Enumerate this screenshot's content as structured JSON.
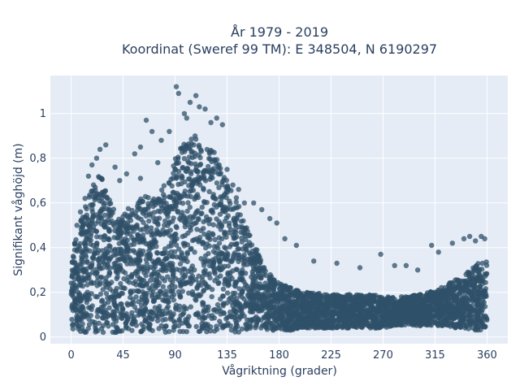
{
  "chart_data": {
    "type": "scatter",
    "title_lines": [
      "År 1979 - 2019",
      "Koordinat (Sweref 99 TM): E 348504, N 6190297"
    ],
    "xlabel": "Vågriktning (grader)",
    "ylabel": "Signifikant våghöjd (m)",
    "xlim": [
      -18,
      378
    ],
    "ylim": [
      -0.03,
      1.17
    ],
    "x_ticks": [
      0,
      45,
      90,
      135,
      180,
      225,
      270,
      315,
      360
    ],
    "y_ticks": [
      0,
      0.2,
      0.4,
      0.6,
      0.8,
      1
    ],
    "y_tick_labels": [
      "0",
      "0,2",
      "0,4",
      "0,6",
      "0,8",
      "1"
    ],
    "grid": true,
    "marker_color": "#2f5068",
    "background": "#e5ecf6",
    "envelope": {
      "x": [
        0,
        5,
        10,
        15,
        20,
        25,
        30,
        35,
        40,
        45,
        50,
        55,
        60,
        65,
        70,
        75,
        80,
        85,
        90,
        95,
        100,
        105,
        110,
        115,
        120,
        125,
        130,
        135,
        140,
        145,
        150,
        155,
        160,
        165,
        170,
        175,
        180,
        185,
        190,
        200,
        210,
        220,
        230,
        240,
        250,
        260,
        270,
        280,
        290,
        300,
        310,
        320,
        330,
        340,
        350,
        355,
        360
      ],
      "y_lower": [
        0.03,
        0.03,
        0.02,
        0.02,
        0.02,
        0.02,
        0.02,
        0.02,
        0.02,
        0.02,
        0.02,
        0.02,
        0.02,
        0.02,
        0.02,
        0.02,
        0.02,
        0.02,
        0.02,
        0.02,
        0.02,
        0.02,
        0.02,
        0.02,
        0.02,
        0.02,
        0.02,
        0.02,
        0.02,
        0.02,
        0.03,
        0.03,
        0.03,
        0.03,
        0.03,
        0.03,
        0.03,
        0.03,
        0.03,
        0.04,
        0.04,
        0.04,
        0.04,
        0.04,
        0.04,
        0.04,
        0.04,
        0.05,
        0.05,
        0.05,
        0.05,
        0.05,
        0.04,
        0.04,
        0.03,
        0.03,
        0.03
      ],
      "y_upper": [
        0.38,
        0.48,
        0.55,
        0.62,
        0.7,
        0.75,
        0.68,
        0.6,
        0.55,
        0.55,
        0.58,
        0.6,
        0.62,
        0.63,
        0.62,
        0.63,
        0.68,
        0.72,
        0.8,
        0.85,
        0.88,
        0.9,
        0.9,
        0.87,
        0.85,
        0.82,
        0.76,
        0.72,
        0.66,
        0.6,
        0.52,
        0.46,
        0.4,
        0.34,
        0.3,
        0.27,
        0.24,
        0.23,
        0.22,
        0.2,
        0.2,
        0.19,
        0.19,
        0.19,
        0.19,
        0.19,
        0.18,
        0.18,
        0.18,
        0.19,
        0.2,
        0.22,
        0.25,
        0.28,
        0.32,
        0.34,
        0.34
      ]
    },
    "outliers": {
      "x": [
        91,
        93,
        98,
        103,
        100,
        108,
        111,
        116,
        121,
        126,
        131,
        85,
        78,
        70,
        65,
        60,
        55,
        48,
        42,
        38,
        30,
        25,
        22,
        18,
        15,
        135,
        140,
        145,
        150,
        158,
        165,
        172,
        178,
        185,
        195,
        210,
        230,
        250,
        268,
        280,
        290,
        300,
        312,
        318,
        330,
        340,
        345,
        350,
        355,
        358,
        12,
        8,
        5,
        60,
        75
      ],
      "y": [
        1.12,
        1.09,
        1.0,
        1.05,
        0.98,
        1.08,
        1.03,
        1.02,
        0.96,
        0.98,
        0.95,
        0.92,
        0.88,
        0.92,
        0.97,
        0.85,
        0.82,
        0.73,
        0.7,
        0.76,
        0.86,
        0.84,
        0.8,
        0.77,
        0.72,
        0.75,
        0.68,
        0.66,
        0.6,
        0.6,
        0.57,
        0.53,
        0.51,
        0.44,
        0.41,
        0.34,
        0.33,
        0.31,
        0.37,
        0.32,
        0.32,
        0.3,
        0.41,
        0.38,
        0.42,
        0.44,
        0.45,
        0.43,
        0.45,
        0.44,
        0.62,
        0.56,
        0.5,
        0.71,
        0.78
      ]
    }
  }
}
